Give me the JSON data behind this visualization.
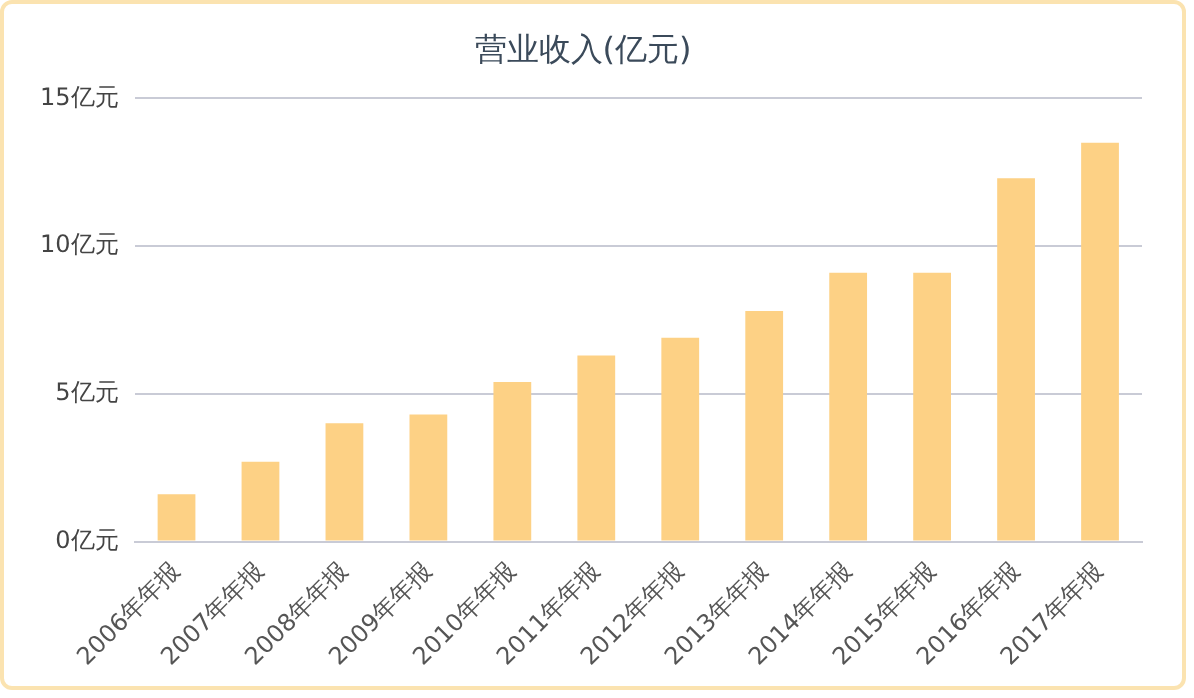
{
  "chart_data": {
    "type": "bar",
    "title": "营业收入(亿元)",
    "categories": [
      "2006年年报",
      "2007年年报",
      "2008年年报",
      "2009年年报",
      "2010年年报",
      "2011年年报",
      "2012年年报",
      "2013年年报",
      "2014年年报",
      "2015年年报",
      "2016年年报",
      "2017年年报"
    ],
    "values": [
      1.6,
      2.7,
      4.0,
      4.3,
      5.4,
      6.3,
      6.9,
      7.8,
      9.1,
      9.1,
      12.3,
      13.5
    ],
    "color": "#fdd185",
    "ylim": [
      0,
      15
    ],
    "yticks": [
      {
        "value": 0,
        "label": "0亿元"
      },
      {
        "value": 5,
        "label": "5亿元"
      },
      {
        "value": 10,
        "label": "10亿元"
      },
      {
        "value": 15,
        "label": "15亿元"
      }
    ],
    "grid": "y"
  }
}
